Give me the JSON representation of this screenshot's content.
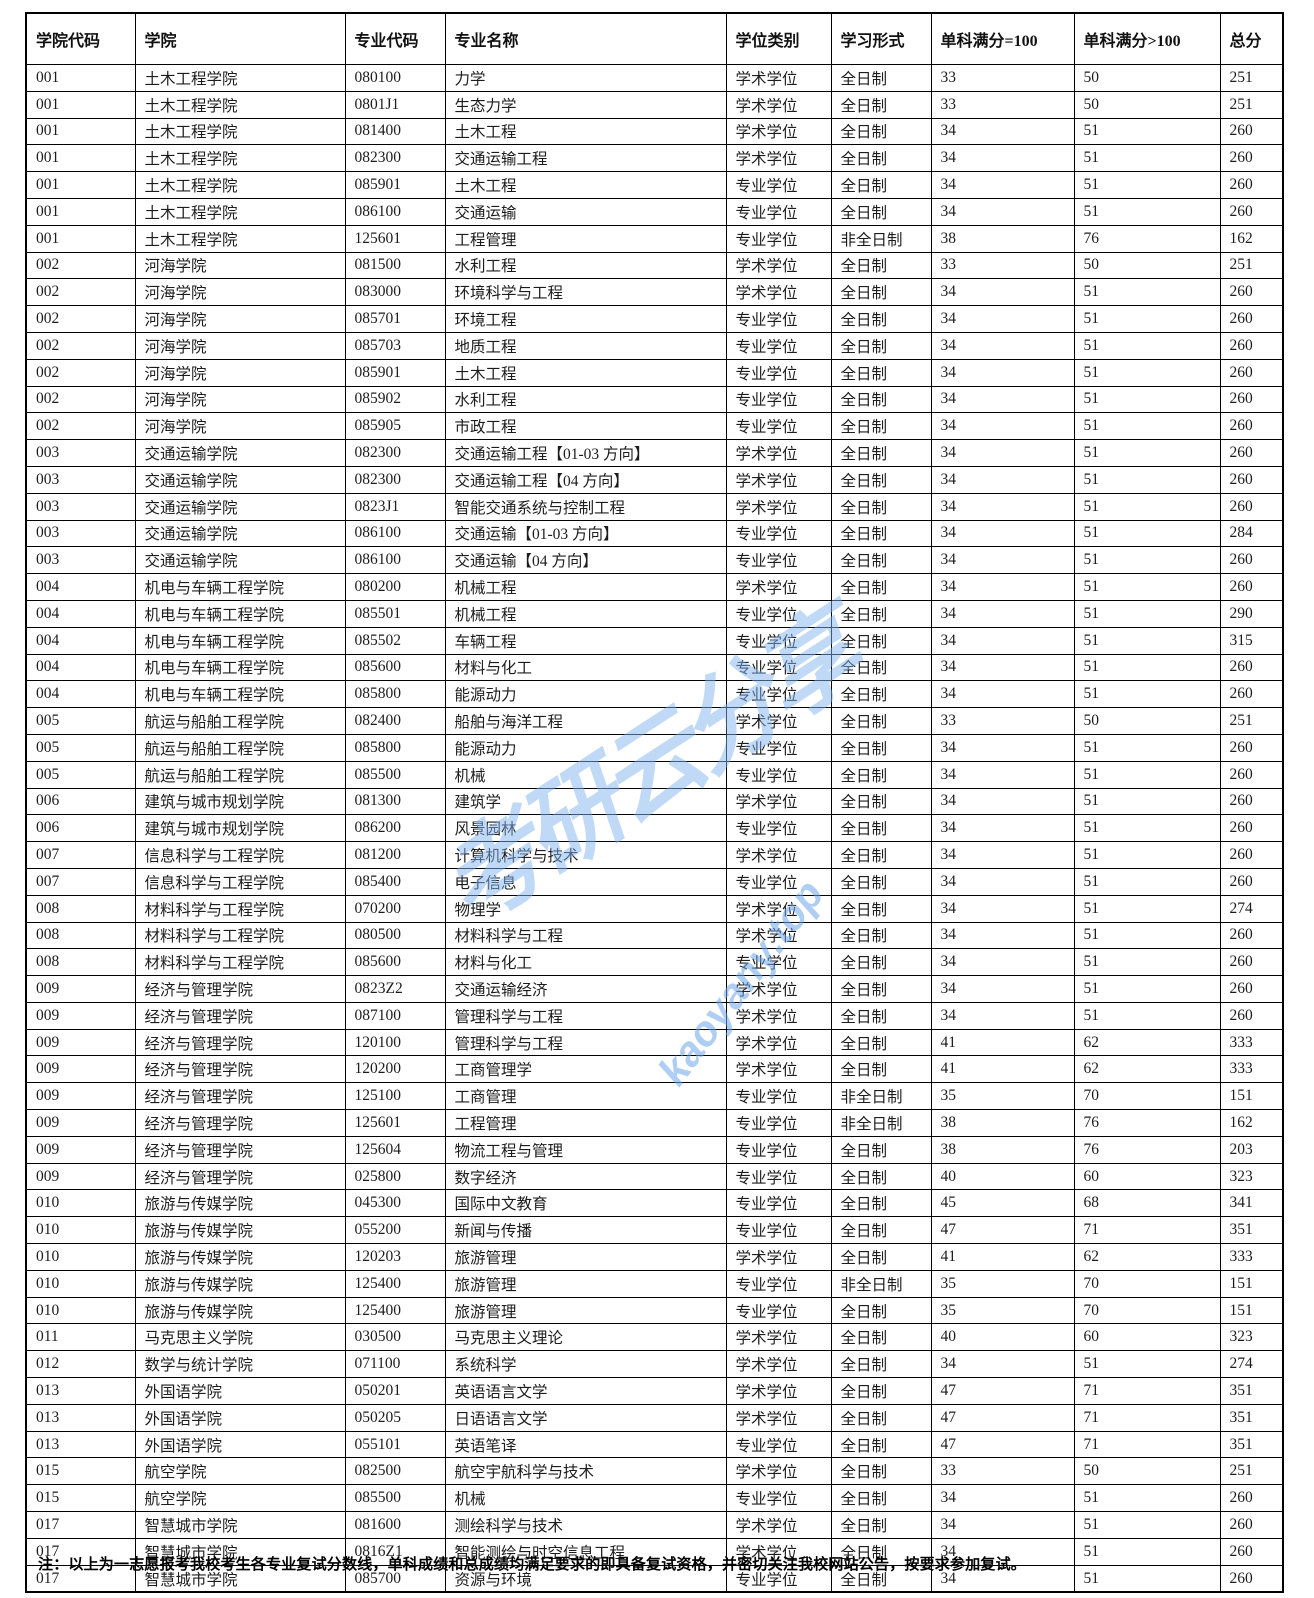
{
  "table": {
    "headers": [
      "学院代码",
      "学院",
      "专业代码",
      "专业名称",
      "学位类别",
      "学习形式",
      "单科满分=100",
      "单科满分>100",
      "总分"
    ],
    "rows": [
      [
        "001",
        "土木工程学院",
        "080100",
        "力学",
        "学术学位",
        "全日制",
        "33",
        "50",
        "251"
      ],
      [
        "001",
        "土木工程学院",
        "0801J1",
        "生态力学",
        "学术学位",
        "全日制",
        "33",
        "50",
        "251"
      ],
      [
        "001",
        "土木工程学院",
        "081400",
        "土木工程",
        "学术学位",
        "全日制",
        "34",
        "51",
        "260"
      ],
      [
        "001",
        "土木工程学院",
        "082300",
        "交通运输工程",
        "学术学位",
        "全日制",
        "34",
        "51",
        "260"
      ],
      [
        "001",
        "土木工程学院",
        "085901",
        "土木工程",
        "专业学位",
        "全日制",
        "34",
        "51",
        "260"
      ],
      [
        "001",
        "土木工程学院",
        "086100",
        "交通运输",
        "专业学位",
        "全日制",
        "34",
        "51",
        "260"
      ],
      [
        "001",
        "土木工程学院",
        "125601",
        "工程管理",
        "专业学位",
        "非全日制",
        "38",
        "76",
        "162"
      ],
      [
        "002",
        "河海学院",
        "081500",
        "水利工程",
        "学术学位",
        "全日制",
        "33",
        "50",
        "251"
      ],
      [
        "002",
        "河海学院",
        "083000",
        "环境科学与工程",
        "学术学位",
        "全日制",
        "34",
        "51",
        "260"
      ],
      [
        "002",
        "河海学院",
        "085701",
        "环境工程",
        "专业学位",
        "全日制",
        "34",
        "51",
        "260"
      ],
      [
        "002",
        "河海学院",
        "085703",
        "地质工程",
        "专业学位",
        "全日制",
        "34",
        "51",
        "260"
      ],
      [
        "002",
        "河海学院",
        "085901",
        "土木工程",
        "专业学位",
        "全日制",
        "34",
        "51",
        "260"
      ],
      [
        "002",
        "河海学院",
        "085902",
        "水利工程",
        "专业学位",
        "全日制",
        "34",
        "51",
        "260"
      ],
      [
        "002",
        "河海学院",
        "085905",
        "市政工程",
        "专业学位",
        "全日制",
        "34",
        "51",
        "260"
      ],
      [
        "003",
        "交通运输学院",
        "082300",
        "交通运输工程【01-03 方向】",
        "学术学位",
        "全日制",
        "34",
        "51",
        "260"
      ],
      [
        "003",
        "交通运输学院",
        "082300",
        "交通运输工程【04 方向】",
        "学术学位",
        "全日制",
        "34",
        "51",
        "260"
      ],
      [
        "003",
        "交通运输学院",
        "0823J1",
        "智能交通系统与控制工程",
        "学术学位",
        "全日制",
        "34",
        "51",
        "260"
      ],
      [
        "003",
        "交通运输学院",
        "086100",
        "交通运输【01-03 方向】",
        "专业学位",
        "全日制",
        "34",
        "51",
        "284"
      ],
      [
        "003",
        "交通运输学院",
        "086100",
        "交通运输【04 方向】",
        "专业学位",
        "全日制",
        "34",
        "51",
        "260"
      ],
      [
        "004",
        "机电与车辆工程学院",
        "080200",
        "机械工程",
        "学术学位",
        "全日制",
        "34",
        "51",
        "260"
      ],
      [
        "004",
        "机电与车辆工程学院",
        "085501",
        "机械工程",
        "专业学位",
        "全日制",
        "34",
        "51",
        "290"
      ],
      [
        "004",
        "机电与车辆工程学院",
        "085502",
        "车辆工程",
        "专业学位",
        "全日制",
        "34",
        "51",
        "315"
      ],
      [
        "004",
        "机电与车辆工程学院",
        "085600",
        "材料与化工",
        "专业学位",
        "全日制",
        "34",
        "51",
        "260"
      ],
      [
        "004",
        "机电与车辆工程学院",
        "085800",
        "能源动力",
        "专业学位",
        "全日制",
        "34",
        "51",
        "260"
      ],
      [
        "005",
        "航运与船舶工程学院",
        "082400",
        "船舶与海洋工程",
        "学术学位",
        "全日制",
        "33",
        "50",
        "251"
      ],
      [
        "005",
        "航运与船舶工程学院",
        "085800",
        "能源动力",
        "专业学位",
        "全日制",
        "34",
        "51",
        "260"
      ],
      [
        "005",
        "航运与船舶工程学院",
        "085500",
        "机械",
        "专业学位",
        "全日制",
        "34",
        "51",
        "260"
      ],
      [
        "006",
        "建筑与城市规划学院",
        "081300",
        "建筑学",
        "学术学位",
        "全日制",
        "34",
        "51",
        "260"
      ],
      [
        "006",
        "建筑与城市规划学院",
        "086200",
        "风景园林",
        "专业学位",
        "全日制",
        "34",
        "51",
        "260"
      ],
      [
        "007",
        "信息科学与工程学院",
        "081200",
        "计算机科学与技术",
        "学术学位",
        "全日制",
        "34",
        "51",
        "260"
      ],
      [
        "007",
        "信息科学与工程学院",
        "085400",
        "电子信息",
        "专业学位",
        "全日制",
        "34",
        "51",
        "260"
      ],
      [
        "008",
        "材料科学与工程学院",
        "070200",
        "物理学",
        "学术学位",
        "全日制",
        "34",
        "51",
        "274"
      ],
      [
        "008",
        "材料科学与工程学院",
        "080500",
        "材料科学与工程",
        "学术学位",
        "全日制",
        "34",
        "51",
        "260"
      ],
      [
        "008",
        "材料科学与工程学院",
        "085600",
        "材料与化工",
        "专业学位",
        "全日制",
        "34",
        "51",
        "260"
      ],
      [
        "009",
        "经济与管理学院",
        "0823Z2",
        "交通运输经济",
        "学术学位",
        "全日制",
        "34",
        "51",
        "260"
      ],
      [
        "009",
        "经济与管理学院",
        "087100",
        "管理科学与工程",
        "学术学位",
        "全日制",
        "34",
        "51",
        "260"
      ],
      [
        "009",
        "经济与管理学院",
        "120100",
        "管理科学与工程",
        "学术学位",
        "全日制",
        "41",
        "62",
        "333"
      ],
      [
        "009",
        "经济与管理学院",
        "120200",
        "工商管理学",
        "学术学位",
        "全日制",
        "41",
        "62",
        "333"
      ],
      [
        "009",
        "经济与管理学院",
        "125100",
        "工商管理",
        "专业学位",
        "非全日制",
        "35",
        "70",
        "151"
      ],
      [
        "009",
        "经济与管理学院",
        "125601",
        "工程管理",
        "专业学位",
        "非全日制",
        "38",
        "76",
        "162"
      ],
      [
        "009",
        "经济与管理学院",
        "125604",
        "物流工程与管理",
        "专业学位",
        "全日制",
        "38",
        "76",
        "203"
      ],
      [
        "009",
        "经济与管理学院",
        "025800",
        "数字经济",
        "专业学位",
        "全日制",
        "40",
        "60",
        "323"
      ],
      [
        "010",
        "旅游与传媒学院",
        "045300",
        "国际中文教育",
        "专业学位",
        "全日制",
        "45",
        "68",
        "341"
      ],
      [
        "010",
        "旅游与传媒学院",
        "055200",
        "新闻与传播",
        "专业学位",
        "全日制",
        "47",
        "71",
        "351"
      ],
      [
        "010",
        "旅游与传媒学院",
        "120203",
        "旅游管理",
        "学术学位",
        "全日制",
        "41",
        "62",
        "333"
      ],
      [
        "010",
        "旅游与传媒学院",
        "125400",
        "旅游管理",
        "专业学位",
        "非全日制",
        "35",
        "70",
        "151"
      ],
      [
        "010",
        "旅游与传媒学院",
        "125400",
        "旅游管理",
        "专业学位",
        "全日制",
        "35",
        "70",
        "151"
      ],
      [
        "011",
        "马克思主义学院",
        "030500",
        "马克思主义理论",
        "学术学位",
        "全日制",
        "40",
        "60",
        "323"
      ],
      [
        "012",
        "数学与统计学院",
        "071100",
        "系统科学",
        "学术学位",
        "全日制",
        "34",
        "51",
        "274"
      ],
      [
        "013",
        "外国语学院",
        "050201",
        "英语语言文学",
        "学术学位",
        "全日制",
        "47",
        "71",
        "351"
      ],
      [
        "013",
        "外国语学院",
        "050205",
        "日语语言文学",
        "学术学位",
        "全日制",
        "47",
        "71",
        "351"
      ],
      [
        "013",
        "外国语学院",
        "055101",
        "英语笔译",
        "专业学位",
        "全日制",
        "47",
        "71",
        "351"
      ],
      [
        "015",
        "航空学院",
        "082500",
        "航空宇航科学与技术",
        "学术学位",
        "全日制",
        "33",
        "50",
        "251"
      ],
      [
        "015",
        "航空学院",
        "085500",
        "机械",
        "专业学位",
        "全日制",
        "34",
        "51",
        "260"
      ],
      [
        "017",
        "智慧城市学院",
        "081600",
        "测绘科学与技术",
        "学术学位",
        "全日制",
        "34",
        "51",
        "260"
      ],
      [
        "017",
        "智慧城市学院",
        "0816Z1",
        "智能测绘与时空信息工程",
        "学术学位",
        "全日制",
        "34",
        "51",
        "260"
      ],
      [
        "017",
        "智慧城市学院",
        "085700",
        "资源与环境",
        "专业学位",
        "全日制",
        "34",
        "51",
        "260"
      ]
    ]
  },
  "note": "注：以上为一志愿报考我校考生各专业复试分数线，单科成绩和总成绩均满足要求的即具备复试资格，并密切关注我校网站公告，按要求参加复试。",
  "watermark": {
    "cn": "考研云分享",
    "en": "kaoyany.top",
    "color": "#82b4f0"
  }
}
